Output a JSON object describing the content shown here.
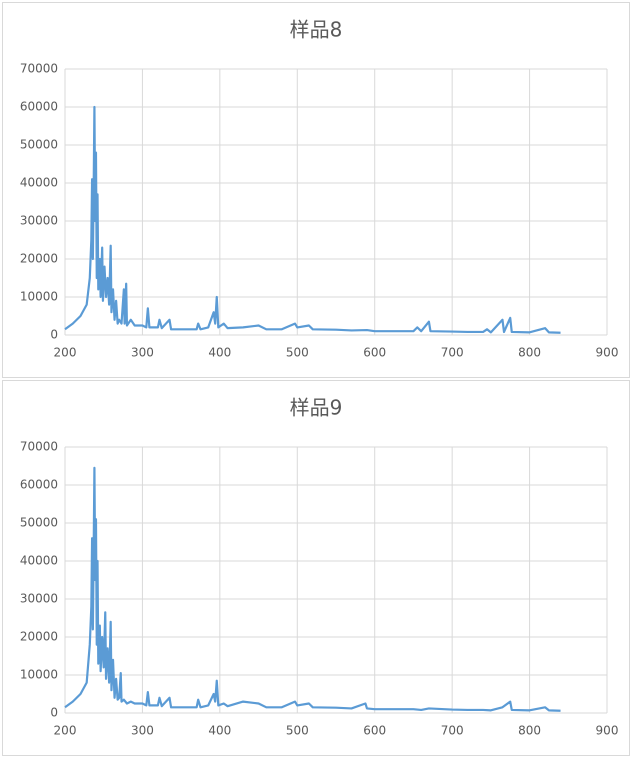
{
  "chart_data": [
    {
      "type": "line",
      "title": "样品8",
      "color": "#5b9bd5",
      "grid": true,
      "xlim": [
        200,
        900
      ],
      "xticks": [
        200,
        300,
        400,
        500,
        600,
        700,
        800,
        900
      ],
      "ylim": [
        0,
        70000
      ],
      "yticks": [
        0,
        10000,
        20000,
        30000,
        40000,
        50000,
        60000,
        70000
      ],
      "x": [
        200,
        210,
        220,
        228,
        232,
        234,
        235,
        236,
        237,
        238,
        239,
        240,
        241,
        242,
        243,
        245,
        246,
        248,
        249,
        251,
        253,
        255,
        257,
        259,
        260,
        262,
        264,
        266,
        268,
        270,
        273,
        276,
        277,
        279,
        280,
        285,
        290,
        300,
        305,
        307,
        309,
        320,
        322,
        325,
        335,
        337,
        350,
        370,
        372,
        375,
        385,
        392,
        394,
        396,
        398,
        405,
        410,
        430,
        450,
        460,
        480,
        497,
        500,
        515,
        520,
        550,
        570,
        590,
        600,
        620,
        650,
        655,
        660,
        670,
        672,
        700,
        720,
        740,
        745,
        750,
        765,
        767,
        775,
        777,
        800,
        820,
        825,
        840
      ],
      "values": [
        1500,
        3000,
        5000,
        8000,
        15000,
        25000,
        41000,
        20000,
        38000,
        60000,
        30000,
        48000,
        15000,
        37000,
        12000,
        20000,
        10000,
        23000,
        9000,
        18000,
        10000,
        15000,
        8000,
        23500,
        6000,
        12000,
        4000,
        9000,
        3000,
        4000,
        3000,
        12000,
        3000,
        13500,
        2500,
        4000,
        2500,
        2500,
        2000,
        7000,
        2000,
        2000,
        4000,
        1800,
        4000,
        1500,
        1500,
        1500,
        3000,
        1500,
        2000,
        6000,
        3000,
        10000,
        2000,
        3000,
        1800,
        2000,
        2500,
        1500,
        1500,
        3000,
        2000,
        2500,
        1500,
        1400,
        1200,
        1300,
        1000,
        1000,
        1000,
        2000,
        1000,
        3500,
        1000,
        900,
        800,
        800,
        1500,
        700,
        4000,
        800,
        4500,
        800,
        700,
        1800,
        700,
        600
      ]
    },
    {
      "type": "line",
      "title": "样品9",
      "color": "#5b9bd5",
      "grid": true,
      "xlim": [
        200,
        900
      ],
      "xticks": [
        200,
        300,
        400,
        500,
        600,
        700,
        800,
        900
      ],
      "ylim": [
        0,
        70000
      ],
      "yticks": [
        0,
        10000,
        20000,
        30000,
        40000,
        50000,
        60000,
        70000
      ],
      "x": [
        200,
        210,
        220,
        228,
        232,
        234,
        235,
        236,
        237,
        238,
        239,
        240,
        241,
        242,
        243,
        245,
        246,
        248,
        250,
        252,
        253,
        255,
        257,
        259,
        260,
        262,
        264,
        266,
        268,
        270,
        272,
        273,
        276,
        280,
        285,
        290,
        300,
        305,
        307,
        309,
        320,
        322,
        325,
        335,
        337,
        350,
        370,
        372,
        375,
        385,
        392,
        394,
        396,
        398,
        405,
        410,
        430,
        450,
        460,
        480,
        497,
        500,
        515,
        520,
        550,
        570,
        588,
        590,
        600,
        620,
        650,
        660,
        670,
        700,
        720,
        740,
        750,
        765,
        775,
        777,
        800,
        820,
        825,
        840
      ],
      "values": [
        1500,
        3000,
        5000,
        8000,
        18000,
        28000,
        46000,
        22000,
        42000,
        64500,
        35000,
        51000,
        18000,
        40000,
        13000,
        23000,
        11000,
        20000,
        12000,
        26500,
        9000,
        17000,
        8000,
        24000,
        6000,
        14000,
        4000,
        9000,
        3500,
        4000,
        10500,
        3000,
        3500,
        2500,
        3000,
        2500,
        2500,
        2000,
        5500,
        2000,
        2000,
        4000,
        1800,
        4000,
        1500,
        1500,
        1500,
        3500,
        1500,
        2000,
        5000,
        3000,
        8500,
        2000,
        2500,
        1800,
        3000,
        2500,
        1500,
        1500,
        3000,
        2000,
        2500,
        1500,
        1400,
        1200,
        2500,
        1200,
        1000,
        1000,
        1000,
        800,
        1200,
        900,
        800,
        800,
        700,
        1500,
        3000,
        800,
        700,
        1500,
        700,
        600
      ]
    }
  ]
}
